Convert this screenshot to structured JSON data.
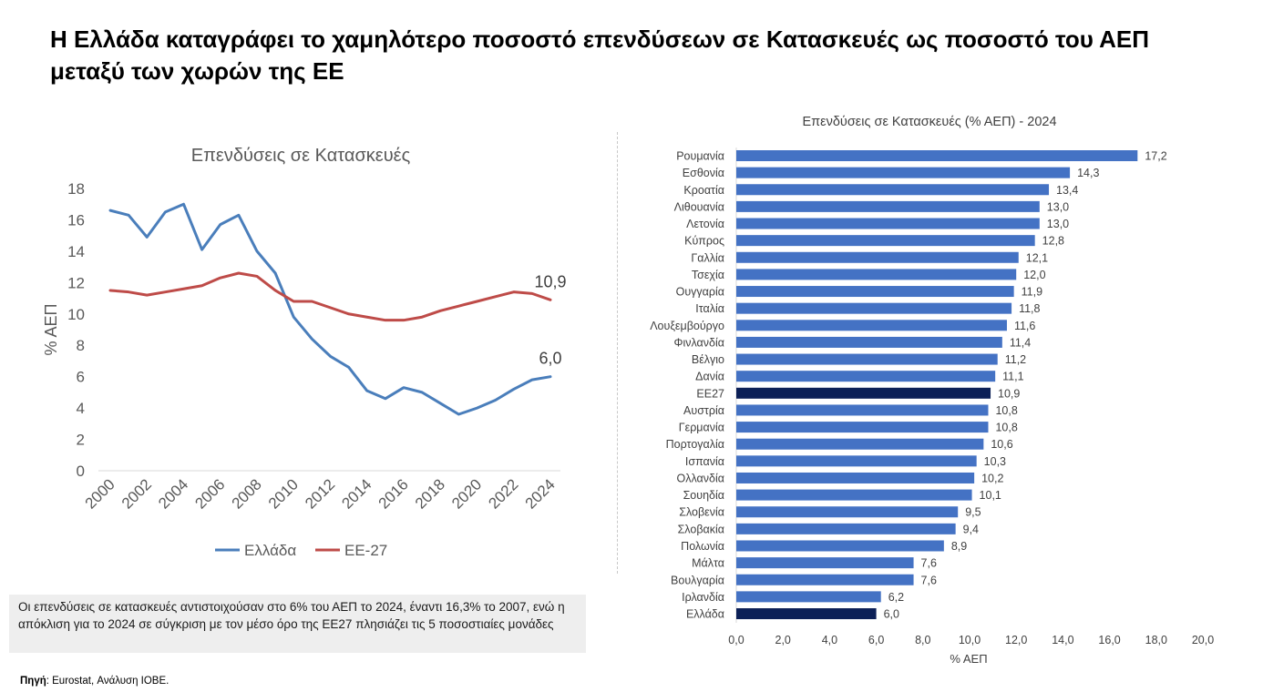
{
  "headline": "Η Ελλάδα καταγράφει το χαμηλότερο ποσοστό επενδύσεων σε Κατασκευές ως ποσοστό του ΑΕΠ μεταξύ των χωρών της ΕΕ",
  "note": "Οι επενδύσεις σε κατασκευές αντιστοιχούσαν στο 6% του ΑΕΠ το 2024, έναντι 16,3% το 2007, ενώ η απόκλιση για το 2024 σε σύγκριση με τον μέσο όρο της ΕΕ27 πλησιάζει τις 5 ποσοστιαίες μονάδες",
  "source": {
    "label": "Πηγή",
    "text": ": Eurostat, Ανάλυση ΙΟΒΕ."
  },
  "colors": {
    "greece_line": "#4a7ebb",
    "eu_line": "#be4b48",
    "bar": "#4472c4",
    "bar_highlight": "#0c2057"
  },
  "chart_data": [
    {
      "type": "line",
      "title": "Επενδύσεις σε Κατασκευές",
      "ylabel": "% ΑΕΠ",
      "xlabel": "",
      "ylim": [
        0,
        18
      ],
      "yticks": [
        "0",
        "2",
        "4",
        "6",
        "8",
        "10",
        "12",
        "14",
        "16",
        "18"
      ],
      "xticks": [
        "2000",
        "2002",
        "2004",
        "2006",
        "2008",
        "2010",
        "2012",
        "2014",
        "2016",
        "2018",
        "2020",
        "2022",
        "2024"
      ],
      "x": [
        2000,
        2001,
        2002,
        2003,
        2004,
        2005,
        2006,
        2007,
        2008,
        2009,
        2010,
        2011,
        2012,
        2013,
        2014,
        2015,
        2016,
        2017,
        2018,
        2019,
        2020,
        2021,
        2022,
        2023,
        2024
      ],
      "series": [
        {
          "name": "Ελλάδα",
          "values": [
            16.6,
            16.3,
            14.9,
            16.5,
            17.0,
            14.1,
            15.7,
            16.3,
            14.0,
            12.6,
            9.8,
            8.4,
            7.3,
            6.6,
            5.1,
            4.6,
            5.3,
            5.0,
            4.3,
            3.6,
            4.0,
            4.5,
            5.2,
            5.8,
            6.0
          ]
        },
        {
          "name": "ΕΕ-27",
          "values": [
            11.5,
            11.4,
            11.2,
            11.4,
            11.6,
            11.8,
            12.3,
            12.6,
            12.4,
            11.5,
            10.8,
            10.8,
            10.4,
            10.0,
            9.8,
            9.6,
            9.6,
            9.8,
            10.2,
            10.5,
            10.8,
            11.1,
            11.4,
            11.3,
            10.9
          ]
        }
      ],
      "end_labels": [
        "6,0",
        "10,9"
      ],
      "legend": "bottom",
      "grid": false
    },
    {
      "type": "bar",
      "orientation": "horizontal",
      "title": "Επενδύσεις σε Κατασκευές (% ΑΕΠ) - 2024",
      "xlabel": "% ΑΕΠ",
      "xlim": [
        0,
        20
      ],
      "xticks": [
        "0,0",
        "2,0",
        "4,0",
        "6,0",
        "8,0",
        "10,0",
        "12,0",
        "14,0",
        "16,0",
        "18,0",
        "20,0"
      ],
      "categories": [
        "Ρουμανία",
        "Εσθονία",
        "Κροατία",
        "Λιθουανία",
        "Λετονία",
        "Κύπρος",
        "Γαλλία",
        "Τσεχία",
        "Ουγγαρία",
        "Ιταλία",
        "Λουξεμβούργο",
        "Φινλανδία",
        "Βέλγιο",
        "Δανία",
        "ΕΕ27",
        "Αυστρία",
        "Γερμανία",
        "Πορτογαλία",
        "Ισπανία",
        "Ολλανδία",
        "Σουηδία",
        "Σλοβενία",
        "Σλοβακία",
        "Πολωνία",
        "Μάλτα",
        "Βουλγαρία",
        "Ιρλανδία",
        "Ελλάδα"
      ],
      "values": [
        17.2,
        14.3,
        13.4,
        13.0,
        13.0,
        12.8,
        12.1,
        12.0,
        11.9,
        11.8,
        11.6,
        11.4,
        11.2,
        11.1,
        10.9,
        10.8,
        10.8,
        10.6,
        10.3,
        10.2,
        10.1,
        9.5,
        9.4,
        8.9,
        7.6,
        7.6,
        6.2,
        6.0
      ],
      "labels": [
        "17,2",
        "14,3",
        "13,4",
        "13,0",
        "13,0",
        "12,8",
        "12,1",
        "12,0",
        "11,9",
        "11,8",
        "11,6",
        "11,4",
        "11,2",
        "11,1",
        "10,9",
        "10,8",
        "10,8",
        "10,6",
        "10,3",
        "10,2",
        "10,1",
        "9,5",
        "9,4",
        "8,9",
        "7,6",
        "7,6",
        "6,2",
        "6,0"
      ],
      "highlighted": [
        "ΕΕ27",
        "Ελλάδα"
      ],
      "grid": false
    }
  ]
}
